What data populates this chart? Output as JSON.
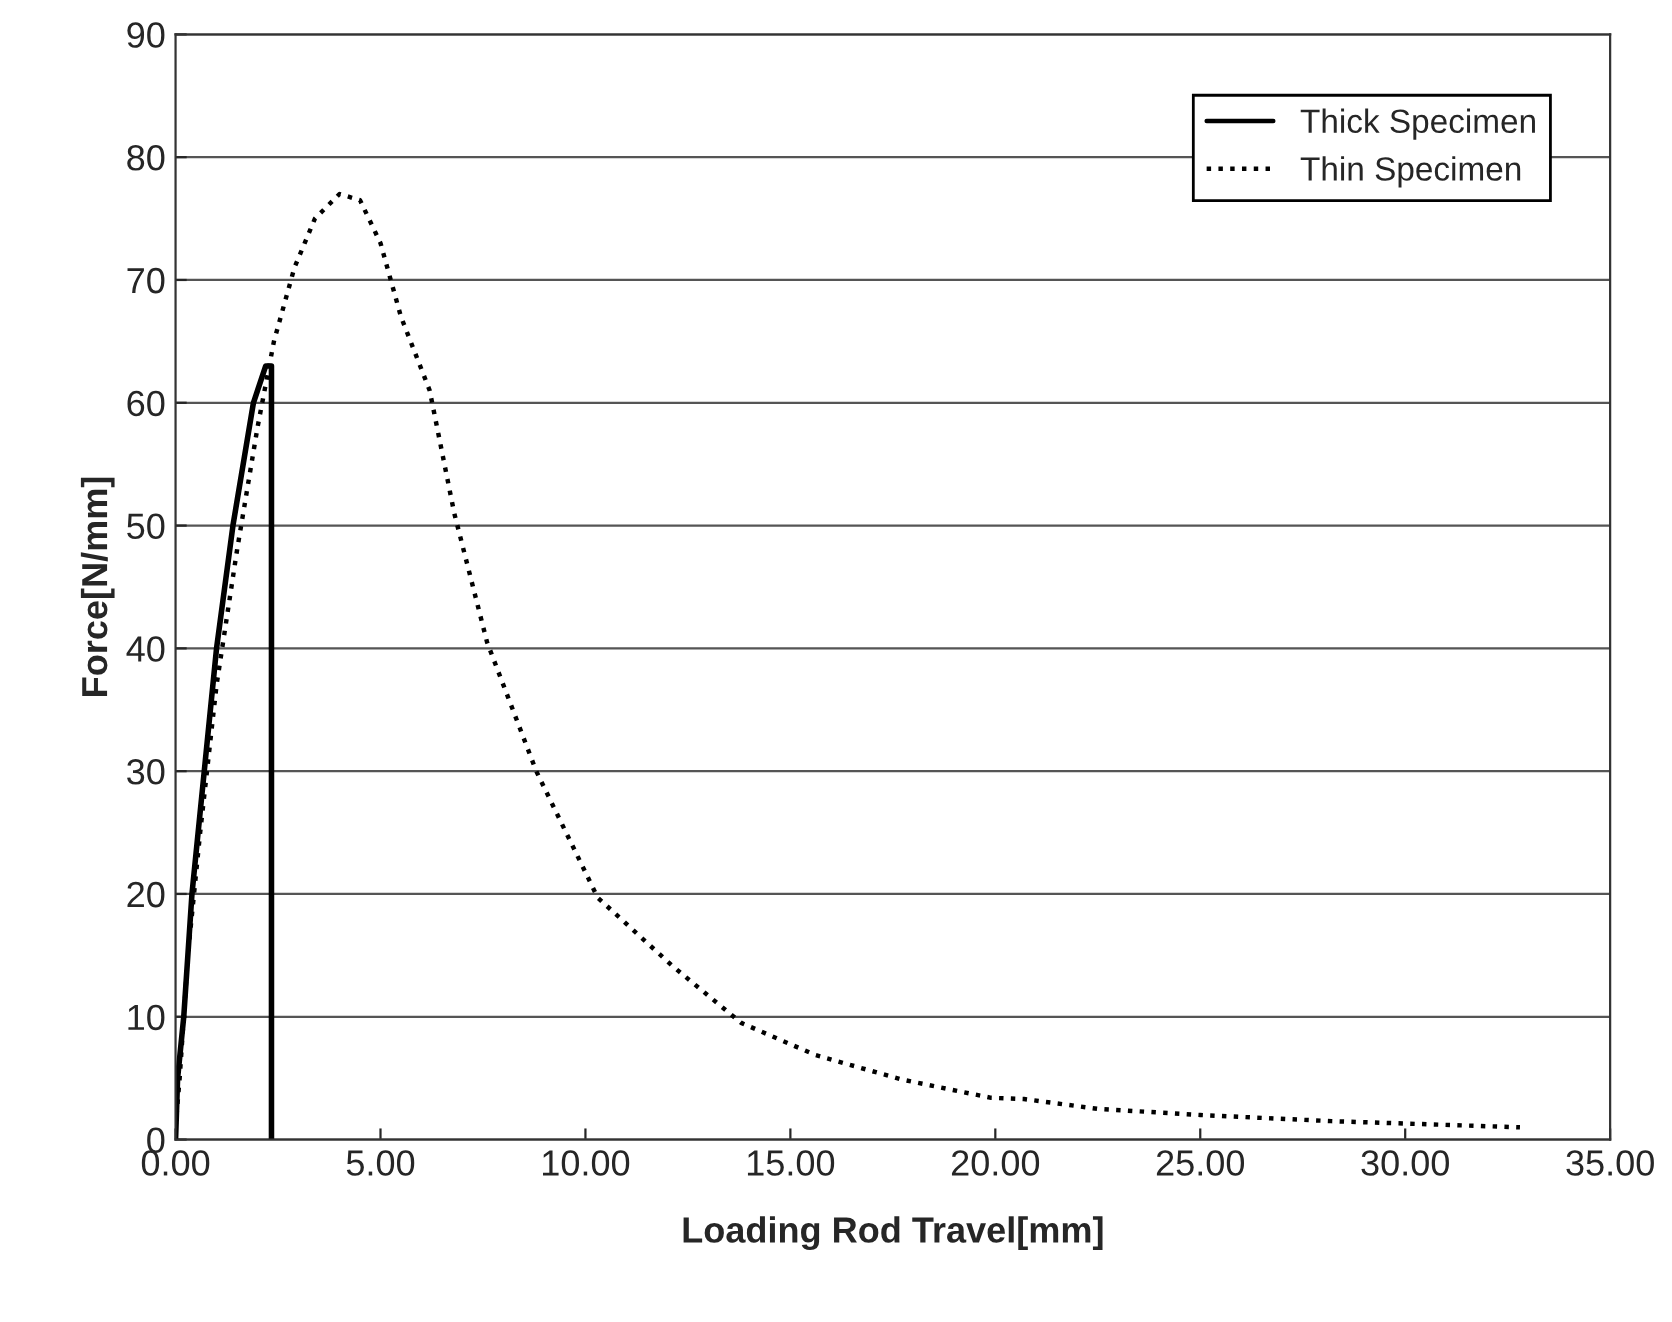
{
  "chart_data": {
    "type": "line",
    "xlabel": "Loading Rod Travel[mm]",
    "ylabel": "Force[N/mm]",
    "xlim": [
      0,
      35
    ],
    "xticks": [
      {
        "value": 0,
        "label": "0.00"
      },
      {
        "value": 5,
        "label": "5.00"
      },
      {
        "value": 10,
        "label": "10.00"
      },
      {
        "value": 15,
        "label": "15.00"
      },
      {
        "value": 20,
        "label": "20.00"
      },
      {
        "value": 25,
        "label": "25.00"
      },
      {
        "value": 30,
        "label": "30.00"
      },
      {
        "value": 35,
        "label": "35.00"
      }
    ],
    "ylim": [
      0,
      90
    ],
    "yticks": [
      0,
      10,
      20,
      30,
      40,
      50,
      60,
      70,
      80,
      90
    ],
    "grid": "y",
    "legend": "top right",
    "series": [
      {
        "name": "Thick Specimen",
        "color": "#000000",
        "line_style": "solid",
        "x": [
          0,
          0.05,
          0.2,
          0.4,
          0.7,
          1.0,
          1.4,
          1.9,
          2.2,
          2.34,
          2.34
        ],
        "values": [
          0,
          5,
          10,
          20,
          30,
          40,
          50,
          60,
          63,
          63,
          0
        ]
      },
      {
        "name": "Thin Specimen",
        "color": "#000000",
        "line_style": "dotted",
        "x": [
          0,
          0.1,
          0.3,
          0.6,
          1.0,
          1.5,
          2.0,
          2.4,
          2.9,
          3.4,
          4.0,
          4.5,
          5.0,
          5.5,
          6.2,
          6.8,
          7.6,
          8.8,
          10.3,
          12.1,
          13.8,
          15.6,
          17.7,
          19.9,
          20.7,
          22.5,
          25.0,
          28.2,
          32.8
        ],
        "values": [
          1,
          5,
          15,
          25,
          37,
          48,
          58,
          65,
          71,
          75,
          77,
          76.5,
          73,
          67,
          61,
          51,
          40.5,
          30,
          19.7,
          14.2,
          9.5,
          6.9,
          4.9,
          3.4,
          3.3,
          2.5,
          2.0,
          1.5,
          1.0
        ]
      }
    ]
  }
}
